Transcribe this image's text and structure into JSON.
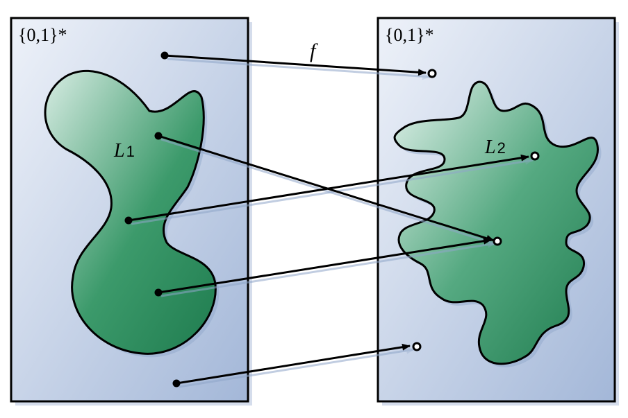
{
  "left_set": {
    "label": "{0,1}*",
    "language": {
      "letter": "L",
      "subscript": "1"
    }
  },
  "right_set": {
    "label": "{0,1}*",
    "language": {
      "letter": "L",
      "subscript": "2"
    }
  },
  "function": {
    "label": "f"
  },
  "colors": {
    "box_fill_light": "#e9eef8",
    "box_fill_dark": "#a8bbdb",
    "blob_fill_light": "#d8ece4",
    "blob_fill_dark": "#27875a",
    "stroke": "#000000"
  }
}
